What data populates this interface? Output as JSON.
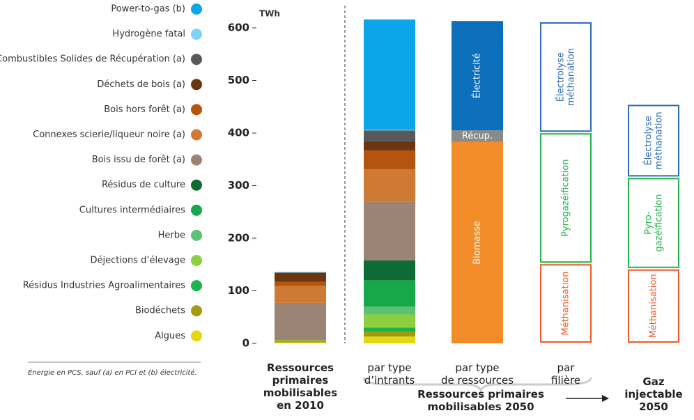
{
  "chart_data": {
    "type": "bar",
    "unit": "TWh",
    "ylim": [
      0,
      600
    ],
    "yticks": [
      0,
      100,
      200,
      300,
      400,
      500,
      600
    ],
    "categories": [
      "Ressources\nprimaires\nmobilisables\nen 2010",
      "par type\nd’intrants"
    ],
    "series": [
      {
        "name": "Power-to-gas (b)",
        "color": "#0ba5e9",
        "values": [
          0,
          210
        ]
      },
      {
        "name": "Hydrogène fatal",
        "color": "#7fd3f7",
        "values": [
          1,
          1
        ]
      },
      {
        "name": "Combustibles Solides de Récupération (a)",
        "color": "#58595b",
        "values": [
          1,
          21
        ]
      },
      {
        "name": "Déchets de bois (a)",
        "color": "#6b3510",
        "values": [
          17,
          17
        ]
      },
      {
        "name": "Bois hors forêt (a)",
        "color": "#b5540f",
        "values": [
          8,
          36
        ]
      },
      {
        "name": "Connexes scierie/liqueur noire (a)",
        "color": "#cf7a34",
        "values": [
          32,
          62
        ]
      },
      {
        "name": "Bois issu de forêt (a)",
        "color": "#9c8474",
        "values": [
          71,
          111
        ]
      },
      {
        "name": "Résidus de culture",
        "color": "#0f6b35",
        "values": [
          0,
          38
        ]
      },
      {
        "name": "Cultures intermédiaires",
        "color": "#17a84b",
        "values": [
          0,
          50
        ]
      },
      {
        "name": "Herbe",
        "color": "#5cc173",
        "values": [
          0,
          15
        ]
      },
      {
        "name": "Déjections d’élevage",
        "color": "#8ccf3f",
        "values": [
          2,
          25
        ]
      },
      {
        "name": "Résidus Industries Agroalimentaires",
        "color": "#1bb34a",
        "values": [
          1,
          8
        ]
      },
      {
        "name": "Biodéchets",
        "color": "#a59a0f",
        "values": [
          1,
          9
        ]
      },
      {
        "name": "Algues",
        "color": "#e3d80f",
        "values": [
          2,
          13
        ]
      }
    ],
    "resource_bar": {
      "category": "par type\nde ressources",
      "segments": [
        {
          "name": "Biomasse",
          "value": 383,
          "color": "#f28c28"
        },
        {
          "name": "Récup.",
          "value": 22,
          "color": "#8a8a8a"
        },
        {
          "name": "Électricité",
          "value": 208,
          "color": "#0c6fbb"
        }
      ]
    },
    "sector_bar": {
      "category": "par\nfilière",
      "segments": [
        {
          "name": "Méthanisation",
          "value": 152,
          "color": "#f05a28"
        },
        {
          "name": "Pyrogazéification",
          "value": 249,
          "color": "#22b24c"
        },
        {
          "name": "Électrolyse\nméthanation",
          "value": 211,
          "color": "#2d6bb5"
        }
      ]
    },
    "injectable_bar": {
      "category": "Gaz\ninjectable\n2050",
      "segments": [
        {
          "name": "Méthanisation",
          "value": 142,
          "color": "#f05a28"
        },
        {
          "name": "Pyro-\ngazéification",
          "value": 174,
          "color": "#22b24c"
        },
        {
          "name": "Électrolyse\nméthanation",
          "value": 139,
          "color": "#2d6bb5"
        }
      ]
    },
    "group_label": "Ressources primaires\nmobilisables 2050",
    "note": "Énergie en PCS, sauf (a) en PCI et (b) électricité."
  }
}
